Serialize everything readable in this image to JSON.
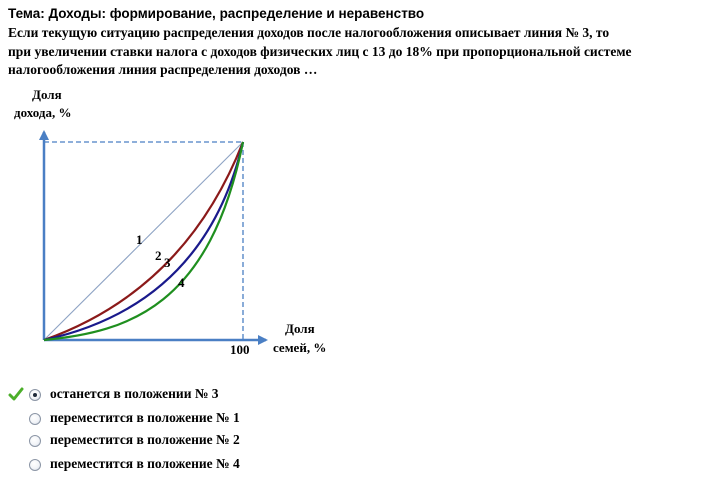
{
  "topic": "Тема: Доходы: формирование, распределение и неравенство",
  "question": {
    "lines": [
      "Если текущую ситуацию распределения доходов после налогообложения описывает линия № 3, то",
      "при увеличении ставки налога с доходов физических лиц с 13 до 18% при пропорциональной системе",
      "налогообложения линия распределения доходов …"
    ]
  },
  "diagram": {
    "y_axis_label": [
      "Доля",
      "дохода, %"
    ],
    "x_axis_label": [
      "Доля",
      "семей, %"
    ],
    "x_tick": "100",
    "curves": [
      {
        "label": "1",
        "color": "#8ea3c4"
      },
      {
        "label": "2",
        "color": "#8b1a1a"
      },
      {
        "label": "3",
        "color": "#1a1a8c"
      },
      {
        "label": "4",
        "color": "#1f8f1f"
      }
    ],
    "colors": {
      "axis": "#4a7fc4",
      "guide": "#4a7fc4"
    }
  },
  "answers": [
    {
      "text": "останется в положении № 3",
      "selected": true,
      "correct_mark": true
    },
    {
      "text": "переместится в положение № 1",
      "selected": false,
      "correct_mark": false
    },
    {
      "text": "переместится в положение № 2",
      "selected": false,
      "correct_mark": false
    },
    {
      "text": "переместится в положение № 4",
      "selected": false,
      "correct_mark": false
    }
  ]
}
